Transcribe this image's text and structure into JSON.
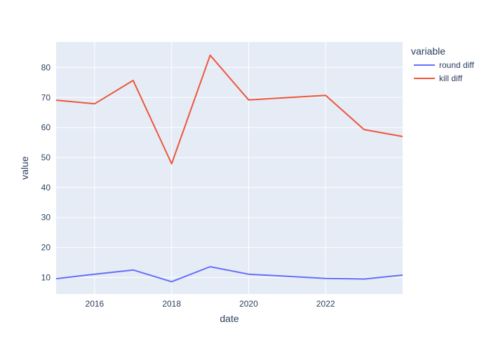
{
  "chart_data": {
    "type": "line",
    "xlabel": "date",
    "ylabel": "value",
    "legend_title": "variable",
    "legend_position": "top-right",
    "grid": true,
    "xlim": [
      2015,
      2024
    ],
    "ylim": [
      4.5,
      88.5
    ],
    "x_ticks": [
      2016,
      2018,
      2020,
      2022
    ],
    "y_ticks": [
      10,
      20,
      30,
      40,
      50,
      60,
      70,
      80
    ],
    "x": [
      2015,
      2016,
      2017,
      2018,
      2019,
      2020,
      2022,
      2023,
      2024
    ],
    "series": [
      {
        "name": "round diff",
        "color": "#636efa",
        "values": [
          9.6,
          11.1,
          12.5,
          8.6,
          13.6,
          11.1,
          9.7,
          9.5,
          10.8
        ]
      },
      {
        "name": "kill diff",
        "color": "#ef553b",
        "values": [
          69.1,
          67.9,
          75.7,
          47.9,
          84.1,
          69.2,
          70.7,
          59.3,
          57.0
        ]
      }
    ],
    "colors": {
      "plot_background": "#e5ecf6",
      "grid": "#ffffff",
      "text": "#2a3f5f"
    }
  }
}
